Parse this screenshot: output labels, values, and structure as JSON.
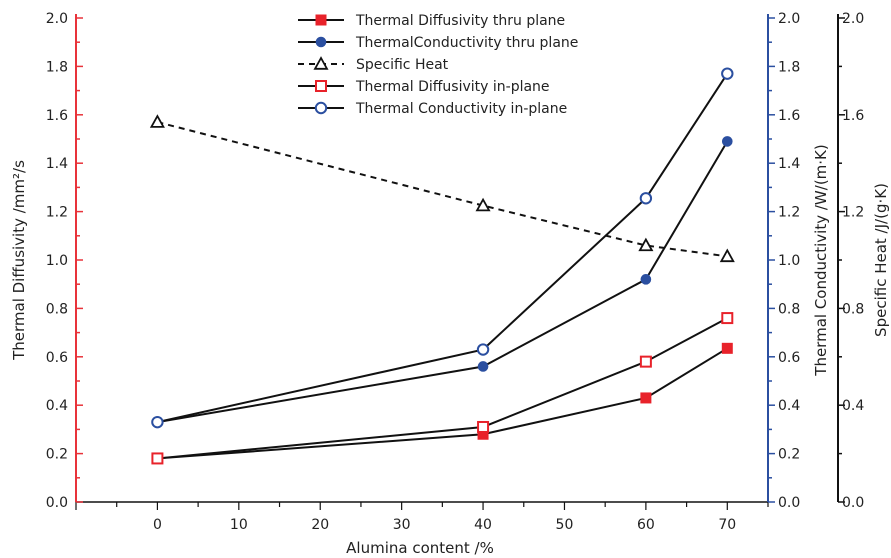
{
  "chart_data": {
    "type": "line",
    "xlabel": "Alumina content /%",
    "x_ticks": [
      0,
      10,
      20,
      30,
      40,
      50,
      60,
      70
    ],
    "xlim": [
      -10,
      75
    ],
    "y_left": {
      "label": "Thermal Diffusivity /mm²/s",
      "ylim": [
        0,
        2.0
      ],
      "ticks": [
        "0.0",
        "0.2",
        "0.4",
        "0.6",
        "0.8",
        "1.0",
        "1.2",
        "1.4",
        "1.6",
        "1.8",
        "2.0"
      ],
      "color": "#e8333a"
    },
    "y_right1": {
      "label": "Thermal Conductivity /W/(m·K)",
      "ylim": [
        0,
        2.0
      ],
      "ticks": [
        "0.0",
        "0.2",
        "0.4",
        "0.6",
        "0.8",
        "1.0",
        "1.2",
        "1.4",
        "1.6",
        "1.8",
        "2.0"
      ],
      "color": "#2b4fa0"
    },
    "y_right2": {
      "label": "Specific Heat /J/(g·K)",
      "ylim": [
        0,
        2.0
      ],
      "ticks": [
        "0.0",
        "0.4",
        "0.8",
        "1.2",
        "1.6",
        "2.0"
      ],
      "color": "#111111"
    },
    "series": [
      {
        "name": "Thermal Diffusivity thru plane",
        "axis": "left",
        "x": [
          0,
          40,
          60,
          70
        ],
        "y": [
          0.18,
          0.28,
          0.43,
          0.635
        ],
        "marker": "square-filled",
        "marker_color": "#e8222a",
        "line_style": "solid"
      },
      {
        "name": "ThermalConductivity thru plane",
        "axis": "right1",
        "x": [
          0,
          40,
          60,
          70
        ],
        "y": [
          0.33,
          0.56,
          0.92,
          1.49
        ],
        "marker": "circle-filled",
        "marker_color": "#2b4fa0",
        "line_style": "solid"
      },
      {
        "name": "Specific Heat",
        "axis": "right2",
        "x": [
          0,
          40,
          60,
          70
        ],
        "y": [
          1.57,
          1.225,
          1.06,
          1.015
        ],
        "marker": "triangle-open",
        "marker_color": "#111111",
        "line_style": "dashed"
      },
      {
        "name": "Thermal Diffusivity in-plane",
        "axis": "left",
        "x": [
          0,
          40,
          60,
          70
        ],
        "y": [
          0.18,
          0.31,
          0.58,
          0.76
        ],
        "marker": "square-open",
        "marker_color": "#e8222a",
        "line_style": "solid"
      },
      {
        "name": "Thermal Conductivity in-plane",
        "axis": "right1",
        "x": [
          0,
          40,
          60,
          70
        ],
        "y": [
          0.33,
          0.63,
          1.255,
          1.77
        ],
        "marker": "circle-open",
        "marker_color": "#2b4fa0",
        "line_style": "solid"
      }
    ],
    "legend_position": "top-center",
    "grid": false
  }
}
